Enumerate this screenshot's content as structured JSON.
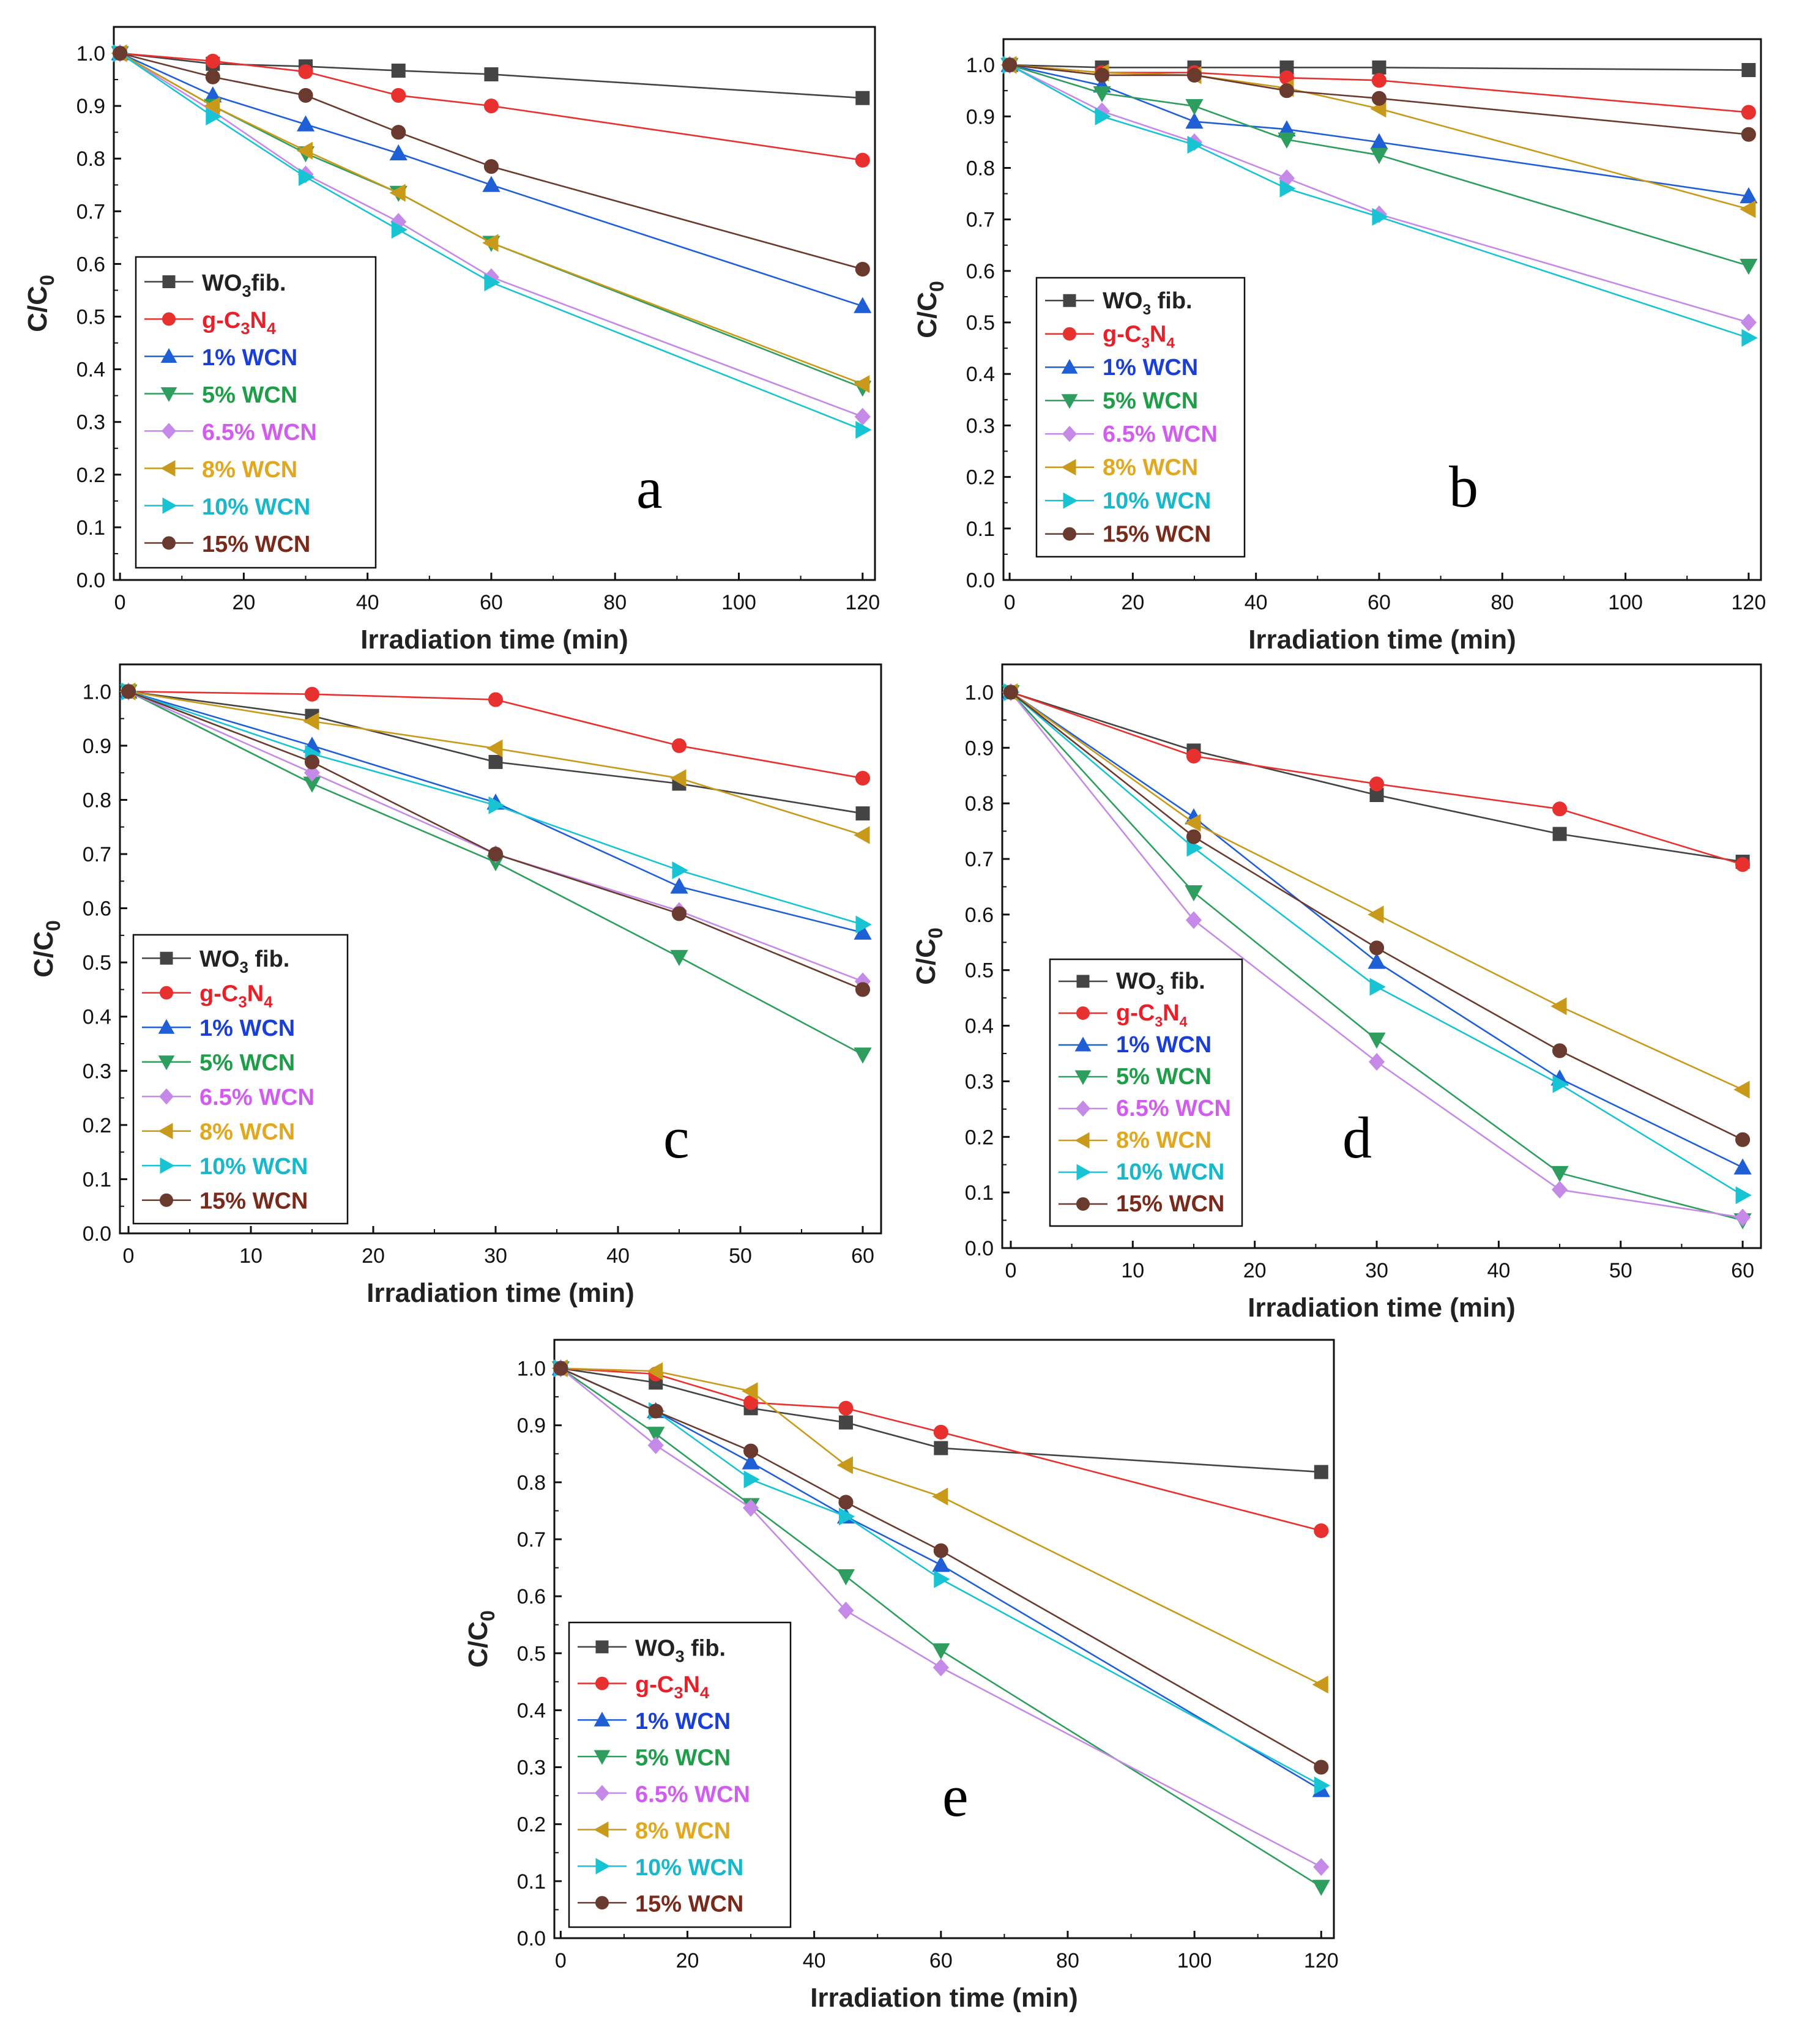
{
  "figure": {
    "ylabel_main": "C/C",
    "ylabel_sub": "0",
    "xlabel": "Irradiation time (min)"
  },
  "series_styles": [
    {
      "key": "wo3",
      "color": "#444444",
      "marker": "square"
    },
    {
      "key": "gcn",
      "color": "#e8302f",
      "marker": "circle"
    },
    {
      "key": "w1",
      "color": "#1f5fd6",
      "marker": "triangle-up"
    },
    {
      "key": "w5",
      "color": "#2e9e5e",
      "marker": "triangle-down"
    },
    {
      "key": "w65",
      "color": "#c58ae8",
      "marker": "diamond"
    },
    {
      "key": "w8",
      "color": "#c99a1a",
      "marker": "triangle-left"
    },
    {
      "key": "w10",
      "color": "#18c4d4",
      "marker": "triangle-right"
    },
    {
      "key": "w15",
      "color": "#6b3a2e",
      "marker": "circle"
    }
  ],
  "legend_colors": [
    "#222222",
    "#e8202a",
    "#1a3fd8",
    "#1f9e4a",
    "#d35cf0",
    "#e0a820",
    "#18b8cc",
    "#7a2a1a"
  ],
  "chart_data": [
    {
      "panel": "a",
      "type": "line",
      "x": [
        0,
        15,
        30,
        45,
        60,
        120
      ],
      "xlim": [
        -1,
        122
      ],
      "ylim": [
        0,
        1.05
      ],
      "xticks": [
        0,
        20,
        40,
        60,
        80,
        100,
        120
      ],
      "yticks": [
        0.0,
        0.1,
        0.2,
        0.3,
        0.4,
        0.5,
        0.6,
        0.7,
        0.8,
        0.9,
        1.0
      ],
      "xlabel": "Irradiation time (min)",
      "ylabel": "C/C0",
      "legend_position": "lower-left",
      "series": [
        {
          "name": "WO3fib.",
          "values": [
            1.0,
            0.98,
            0.975,
            0.967,
            0.96,
            0.915
          ]
        },
        {
          "name": "g-C3N4",
          "values": [
            1.0,
            0.985,
            0.965,
            0.92,
            0.9,
            0.797
          ]
        },
        {
          "name": "1% WCN",
          "values": [
            1.0,
            0.92,
            0.865,
            0.81,
            0.75,
            0.52
          ]
        },
        {
          "name": "5% WCN",
          "values": [
            1.0,
            0.9,
            0.81,
            0.735,
            0.64,
            0.365
          ]
        },
        {
          "name": "6.5% WCN",
          "values": [
            1.0,
            0.89,
            0.77,
            0.68,
            0.575,
            0.31
          ]
        },
        {
          "name": "8% WCN",
          "values": [
            1.0,
            0.9,
            0.815,
            0.735,
            0.64,
            0.372
          ]
        },
        {
          "name": "10% WCN",
          "values": [
            1.0,
            0.88,
            0.765,
            0.665,
            0.565,
            0.285
          ]
        },
        {
          "name": "15% WCN",
          "values": [
            1.0,
            0.955,
            0.92,
            0.85,
            0.785,
            0.59
          ]
        }
      ]
    },
    {
      "panel": "b",
      "type": "line",
      "x": [
        0,
        15,
        30,
        45,
        60,
        120
      ],
      "xlim": [
        -1,
        122
      ],
      "ylim": [
        0,
        1.05
      ],
      "xticks": [
        0,
        20,
        40,
        60,
        80,
        100,
        120
      ],
      "yticks": [
        0.0,
        0.1,
        0.2,
        0.3,
        0.4,
        0.5,
        0.6,
        0.7,
        0.8,
        0.9,
        1.0
      ],
      "xlabel": "Irradiation time (min)",
      "ylabel": "C/C0",
      "legend_position": "lower-left",
      "series": [
        {
          "name": "WO3 fib.",
          "values": [
            1.0,
            0.995,
            0.995,
            0.995,
            0.995,
            0.99
          ]
        },
        {
          "name": "g-C3N4",
          "values": [
            1.0,
            0.985,
            0.985,
            0.975,
            0.97,
            0.908
          ]
        },
        {
          "name": "1% WCN",
          "values": [
            1.0,
            0.96,
            0.89,
            0.875,
            0.85,
            0.745
          ]
        },
        {
          "name": "5% WCN",
          "values": [
            1.0,
            0.945,
            0.92,
            0.855,
            0.825,
            0.61
          ]
        },
        {
          "name": "6.5% WCN",
          "values": [
            1.0,
            0.91,
            0.85,
            0.78,
            0.71,
            0.5
          ]
        },
        {
          "name": "8% WCN",
          "values": [
            1.0,
            0.985,
            0.98,
            0.955,
            0.915,
            0.72
          ]
        },
        {
          "name": "10% WCN",
          "values": [
            1.0,
            0.9,
            0.845,
            0.76,
            0.705,
            0.47
          ]
        },
        {
          "name": "15% WCN",
          "values": [
            1.0,
            0.98,
            0.98,
            0.95,
            0.935,
            0.865
          ]
        }
      ]
    },
    {
      "panel": "c",
      "type": "line",
      "x": [
        0,
        15,
        30,
        45,
        60
      ],
      "xlim": [
        -0.7,
        61.5
      ],
      "ylim": [
        0,
        1.05
      ],
      "xticks": [
        0,
        10,
        20,
        30,
        40,
        50,
        60
      ],
      "yticks": [
        0.0,
        0.1,
        0.2,
        0.3,
        0.4,
        0.5,
        0.6,
        0.7,
        0.8,
        0.9,
        1.0
      ],
      "xlabel": "Irradiation time (min)",
      "ylabel": "C/C0",
      "legend_position": "lower-left",
      "series": [
        {
          "name": "WO3 fib.",
          "values": [
            1.0,
            0.955,
            0.87,
            0.83,
            0.775
          ]
        },
        {
          "name": "g-C3N4",
          "values": [
            1.0,
            0.995,
            0.985,
            0.9,
            0.84
          ]
        },
        {
          "name": "1% WCN",
          "values": [
            1.0,
            0.9,
            0.795,
            0.64,
            0.555
          ]
        },
        {
          "name": "5% WCN",
          "values": [
            1.0,
            0.83,
            0.685,
            0.51,
            0.33
          ]
        },
        {
          "name": "6.5% WCN",
          "values": [
            1.0,
            0.85,
            0.7,
            0.595,
            0.465
          ]
        },
        {
          "name": "8% WCN",
          "values": [
            1.0,
            0.945,
            0.895,
            0.84,
            0.735
          ]
        },
        {
          "name": "10% WCN",
          "values": [
            1.0,
            0.885,
            0.79,
            0.67,
            0.57
          ]
        },
        {
          "name": "15% WCN",
          "values": [
            1.0,
            0.87,
            0.7,
            0.59,
            0.45
          ]
        }
      ]
    },
    {
      "panel": "d",
      "type": "line",
      "x": [
        0,
        15,
        30,
        45,
        60
      ],
      "xlim": [
        -0.7,
        61.5
      ],
      "ylim": [
        0,
        1.05
      ],
      "xticks": [
        0,
        10,
        20,
        30,
        40,
        50,
        60
      ],
      "yticks": [
        0.0,
        0.1,
        0.2,
        0.3,
        0.4,
        0.5,
        0.6,
        0.7,
        0.8,
        0.9,
        1.0
      ],
      "xlabel": "Irradiation time (min)",
      "ylabel": "C/C0",
      "legend_position": "lower-left",
      "series": [
        {
          "name": "WO3 fib.",
          "values": [
            1.0,
            0.895,
            0.815,
            0.745,
            0.695
          ]
        },
        {
          "name": "g-C3N4",
          "values": [
            1.0,
            0.885,
            0.835,
            0.79,
            0.69
          ]
        },
        {
          "name": "1% WCN",
          "values": [
            1.0,
            0.775,
            0.515,
            0.305,
            0.145
          ]
        },
        {
          "name": "5% WCN",
          "values": [
            1.0,
            0.64,
            0.375,
            0.135,
            0.05
          ]
        },
        {
          "name": "6.5% WCN",
          "values": [
            1.0,
            0.59,
            0.335,
            0.105,
            0.055
          ]
        },
        {
          "name": "8% WCN",
          "values": [
            1.0,
            0.765,
            0.6,
            0.435,
            0.285
          ]
        },
        {
          "name": "10% WCN",
          "values": [
            1.0,
            0.72,
            0.47,
            0.295,
            0.095
          ]
        },
        {
          "name": "15% WCN",
          "values": [
            1.0,
            0.74,
            0.54,
            0.355,
            0.195
          ]
        }
      ]
    },
    {
      "panel": "e",
      "type": "line",
      "x": [
        0,
        15,
        30,
        45,
        60,
        120
      ],
      "xlim": [
        -1,
        122
      ],
      "ylim": [
        0,
        1.05
      ],
      "xticks": [
        0,
        20,
        40,
        60,
        80,
        100,
        120
      ],
      "yticks": [
        0.0,
        0.1,
        0.2,
        0.3,
        0.4,
        0.5,
        0.6,
        0.7,
        0.8,
        0.9,
        1.0
      ],
      "xlabel": "Irradiation time (min)",
      "ylabel": "C/C0",
      "legend_position": "lower-left",
      "series": [
        {
          "name": "WO3 fib.",
          "values": [
            1.0,
            0.975,
            0.93,
            0.905,
            0.86,
            0.818
          ]
        },
        {
          "name": "g-C3N4",
          "values": [
            1.0,
            0.99,
            0.94,
            0.93,
            0.888,
            0.715
          ]
        },
        {
          "name": "1% WCN",
          "values": [
            1.0,
            0.925,
            0.835,
            0.74,
            0.655,
            0.26
          ]
        },
        {
          "name": "5% WCN",
          "values": [
            1.0,
            0.885,
            0.76,
            0.635,
            0.505,
            0.09
          ]
        },
        {
          "name": "6.5% WCN",
          "values": [
            1.0,
            0.865,
            0.755,
            0.575,
            0.475,
            0.125
          ]
        },
        {
          "name": "8% WCN",
          "values": [
            1.0,
            0.995,
            0.96,
            0.83,
            0.775,
            0.445
          ]
        },
        {
          "name": "10% WCN",
          "values": [
            1.0,
            0.925,
            0.805,
            0.74,
            0.63,
            0.268
          ]
        },
        {
          "name": "15% WCN",
          "values": [
            1.0,
            0.925,
            0.855,
            0.765,
            0.68,
            0.3
          ]
        }
      ]
    }
  ],
  "legends": {
    "a": {
      "entries": [
        {
          "main": "WO",
          "sub": "3",
          "rest": "fib."
        },
        {
          "main": "g-C",
          "sub": "3",
          "main2": "N",
          "sub2": "4"
        },
        {
          "main": "1% WCN"
        },
        {
          "main": "5% WCN"
        },
        {
          "main": "6.5% WCN"
        },
        {
          "main": "8% WCN"
        },
        {
          "main": "10% WCN"
        },
        {
          "main": "15% WCN"
        }
      ]
    },
    "b": {
      "entries": [
        {
          "main": "WO",
          "sub": "3",
          "rest": " fib."
        },
        {
          "main": "g-C",
          "sub": "3",
          "main2": "N",
          "sub2": "4"
        },
        {
          "main": "1% WCN"
        },
        {
          "main": "5% WCN"
        },
        {
          "main": "6.5% WCN"
        },
        {
          "main": "8% WCN"
        },
        {
          "main": "10% WCN"
        },
        {
          "main": "15% WCN"
        }
      ]
    },
    "c": {
      "entries": [
        {
          "main": "WO",
          "sub": "3",
          "rest": " fib."
        },
        {
          "main": "g-C",
          "sub": "3",
          "main2": "N",
          "sub2": "4"
        },
        {
          "main": "1% WCN"
        },
        {
          "main": "5% WCN"
        },
        {
          "main": "6.5% WCN"
        },
        {
          "main": "8% WCN"
        },
        {
          "main": "10% WCN"
        },
        {
          "main": "15% WCN"
        }
      ]
    },
    "d": {
      "entries": [
        {
          "main": "WO",
          "sub": "3",
          "rest": " fib."
        },
        {
          "main": "g-C",
          "sub": "3",
          "main2": "N",
          "sub2": "4"
        },
        {
          "main": "1% WCN"
        },
        {
          "main": "5% WCN"
        },
        {
          "main": "6.5% WCN"
        },
        {
          "main": "8% WCN"
        },
        {
          "main": "10% WCN"
        },
        {
          "main": "15% WCN"
        }
      ]
    },
    "e": {
      "entries": [
        {
          "main": "WO",
          "sub": "3",
          "rest": " fib."
        },
        {
          "main": "g-C",
          "sub": "3",
          "main2": "N",
          "sub2": "4"
        },
        {
          "main": "1% WCN"
        },
        {
          "main": "5% WCN"
        },
        {
          "main": "6.5% WCN"
        },
        {
          "main": "8% WCN"
        },
        {
          "main": "10% WCN"
        },
        {
          "main": "15% WCN"
        }
      ]
    }
  }
}
